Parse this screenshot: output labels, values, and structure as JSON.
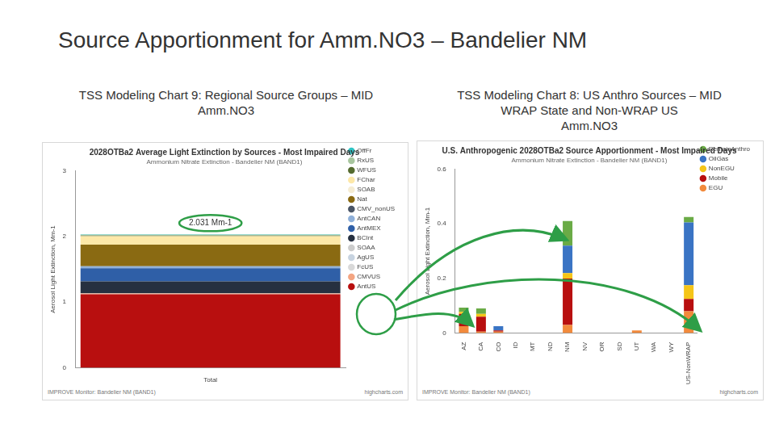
{
  "slide": {
    "title": "Source Apportionment for Amm.NO3 – Bandelier NM",
    "captions": [
      [
        "TSS Modeling Chart 9: Regional Source Groups – MID",
        "Amm.NO3"
      ],
      [
        "TSS Modeling Chart 8: US Anthro Sources – MID",
        "WRAP State and Non-WRAP US",
        "Amm.NO3"
      ]
    ]
  },
  "chart_data": [
    {
      "type": "bar",
      "stacked": true,
      "title": "2028OTBa2 Average Light Extinction by Sources - Most Impaired Days",
      "subtitle": "Ammonium Nitrate Extinction - Bandelier NM (BAND1)",
      "y_label": "Aerosol Light Extinction, Mm-1",
      "categories": [
        "Total"
      ],
      "series": [
        {
          "name": "AntUS",
          "color": "#b80f0f",
          "values": [
            1.12
          ]
        },
        {
          "name": "CMVUS",
          "color": "#f4a582",
          "values": [
            0.01
          ]
        },
        {
          "name": "FcUS",
          "color": "#d9d9d9",
          "values": [
            0
          ]
        },
        {
          "name": "AgUS",
          "color": "#c7d3e0",
          "values": [
            0.005
          ]
        },
        {
          "name": "SOAA",
          "color": "#cccccc",
          "values": [
            0
          ]
        },
        {
          "name": "BCInt",
          "color": "#263040",
          "values": [
            0.18
          ]
        },
        {
          "name": "AntMEX",
          "color": "#2f5fa7",
          "values": [
            0.2
          ]
        },
        {
          "name": "AntCAN",
          "color": "#8fb0d9",
          "values": [
            0.03
          ]
        },
        {
          "name": "CMV_nonUS",
          "color": "#4a5566",
          "values": [
            0
          ]
        },
        {
          "name": "Nat",
          "color": "#8a6a12",
          "values": [
            0.33
          ]
        },
        {
          "name": "SOAB",
          "color": "#f5ecd2",
          "values": [
            0
          ]
        },
        {
          "name": "FChar",
          "color": "#fde8a8",
          "values": [
            0.13
          ]
        },
        {
          "name": "WFUS",
          "color": "#556b2f",
          "values": [
            0.01
          ]
        },
        {
          "name": "RxUS",
          "color": "#a8c69f",
          "values": [
            0.01
          ]
        },
        {
          "name": "OffFr",
          "color": "#2ec4c4",
          "values": [
            0.006
          ]
        }
      ],
      "ylim": [
        0,
        3
      ],
      "yticks": [
        0,
        1,
        2,
        3
      ],
      "grid": false,
      "legend": "top-right",
      "annotations": [
        "2.031 Mm-1"
      ],
      "footer": "IMPROVE Monitor: Bandelier NM (BAND1)",
      "credit": "highcharts.com"
    },
    {
      "type": "bar",
      "stacked": true,
      "title": "U.S. Anthropogenic 2028OTBa2 Source Apportionment - Most Impaired Days",
      "subtitle": "Ammonium Nitrate Extinction - Bandelier NM (BAND1)",
      "y_label": "Aerosol Light Extinction, Mm-1",
      "categories": [
        "AZ",
        "CA",
        "CO",
        "ID",
        "MT",
        "ND",
        "NM",
        "NV",
        "OR",
        "SD",
        "UT",
        "WA",
        "WY",
        "US-NonWRAP"
      ],
      "series": [
        {
          "name": "EGU",
          "color": "#f28a3c",
          "values": [
            0.025,
            0.005,
            0.005,
            0,
            0,
            0,
            0.03,
            0,
            0,
            0,
            0.01,
            0,
            0,
            0.08
          ]
        },
        {
          "name": "Mobile",
          "color": "#b80f0f",
          "values": [
            0.045,
            0.055,
            0.005,
            0,
            0,
            0,
            0.17,
            0,
            0,
            0,
            0,
            0,
            0,
            0.045
          ]
        },
        {
          "name": "NonEGU",
          "color": "#f5c518",
          "values": [
            0.008,
            0.01,
            0,
            0,
            0,
            0,
            0.02,
            0,
            0,
            0,
            0,
            0,
            0,
            0.05
          ]
        },
        {
          "name": "OilGas",
          "color": "#3a74c4",
          "values": [
            0,
            0,
            0.015,
            0,
            0,
            0,
            0.1,
            0,
            0,
            0,
            0,
            0,
            0,
            0.23
          ]
        },
        {
          "name": "RemainAnthro",
          "color": "#6aab46",
          "values": [
            0.015,
            0.02,
            0,
            0,
            0,
            0,
            0.09,
            0,
            0,
            0,
            0,
            0,
            0,
            0.02
          ]
        }
      ],
      "ylim": [
        0,
        0.6
      ],
      "yticks": [
        0,
        0.2,
        0.4,
        0.6
      ],
      "grid": false,
      "legend": "top-right",
      "footer": "IMPROVE Monitor: Bandelier NM (BAND1)",
      "credit": "highcharts.com"
    }
  ]
}
